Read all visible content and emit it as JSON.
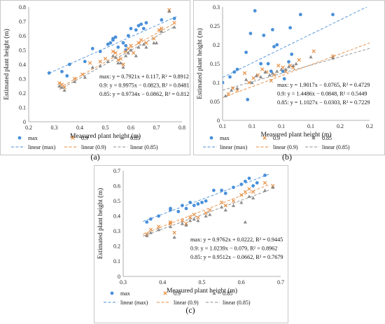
{
  "colors": {
    "max": "#4a90d9",
    "p90": "#e58a3c",
    "p85": "#8c8c8c"
  },
  "legend": {
    "max": "max",
    "p90": "0.9",
    "p85": "0.85",
    "lin_max": "linear (max)",
    "lin_p90": "linear (0.9)",
    "lin_p85": "linear (0.85)"
  },
  "chart_data": [
    {
      "type": "scatter",
      "caption": "(a)",
      "xlabel": "Measured plant height (m)",
      "ylabel": "Estimated plant height (m)",
      "xlim": [
        0.2,
        0.8
      ],
      "ylim": [
        0,
        0.8
      ],
      "xticks": [
        "0.2",
        "0.3",
        "0.4",
        "0.5",
        "0.6",
        "0.7",
        "0.8"
      ],
      "yticks": [
        "0",
        "0.1",
        "0.2",
        "0.3",
        "0.4",
        "0.5",
        "0.6",
        "0.7",
        "0.8"
      ],
      "equations": [
        "max: y = 0.7921x + 0.117, R² = 0.8912",
        "0.9: y = 0.9975x − 0.0823, R² = 0.8481",
        "0.85: y = 0.9734x − 0.0862, R² = 0.812"
      ],
      "fits": [
        {
          "slope": 0.7921,
          "intercept": 0.117,
          "x_range": [
            0.28,
            0.78
          ]
        },
        {
          "slope": 0.9975,
          "intercept": -0.0823,
          "x_range": [
            0.32,
            0.77
          ]
        },
        {
          "slope": 0.9734,
          "intercept": -0.0862,
          "x_range": [
            0.32,
            0.77
          ]
        }
      ],
      "series": [
        {
          "name": "max",
          "points": [
            [
              0.28,
              0.34
            ],
            [
              0.33,
              0.35
            ],
            [
              0.35,
              0.32
            ],
            [
              0.36,
              0.4
            ],
            [
              0.42,
              0.42
            ],
            [
              0.45,
              0.51
            ],
            [
              0.48,
              0.49
            ],
            [
              0.51,
              0.54
            ],
            [
              0.52,
              0.55
            ],
            [
              0.53,
              0.57
            ],
            [
              0.53,
              0.58
            ],
            [
              0.54,
              0.59
            ],
            [
              0.55,
              0.52
            ],
            [
              0.57,
              0.55
            ],
            [
              0.58,
              0.5
            ],
            [
              0.58,
              0.53
            ],
            [
              0.59,
              0.6
            ],
            [
              0.6,
              0.65
            ],
            [
              0.62,
              0.64
            ],
            [
              0.63,
              0.67
            ],
            [
              0.64,
              0.68
            ],
            [
              0.65,
              0.65
            ],
            [
              0.66,
              0.69
            ],
            [
              0.72,
              0.71
            ],
            [
              0.77,
              0.72
            ]
          ]
        },
        {
          "name": "0.9",
          "points": [
            [
              0.32,
              0.27
            ],
            [
              0.33,
              0.26
            ],
            [
              0.34,
              0.24
            ],
            [
              0.38,
              0.3
            ],
            [
              0.41,
              0.33
            ],
            [
              0.44,
              0.41
            ],
            [
              0.48,
              0.42
            ],
            [
              0.5,
              0.44
            ],
            [
              0.53,
              0.49
            ],
            [
              0.54,
              0.48
            ],
            [
              0.55,
              0.43
            ],
            [
              0.56,
              0.44
            ],
            [
              0.57,
              0.4
            ],
            [
              0.58,
              0.49
            ],
            [
              0.59,
              0.51
            ],
            [
              0.6,
              0.53
            ],
            [
              0.61,
              0.48
            ],
            [
              0.63,
              0.55
            ],
            [
              0.64,
              0.57
            ],
            [
              0.66,
              0.55
            ],
            [
              0.69,
              0.58
            ],
            [
              0.71,
              0.64
            ],
            [
              0.72,
              0.65
            ],
            [
              0.75,
              0.78
            ],
            [
              0.77,
              0.69
            ]
          ]
        },
        {
          "name": "0.85",
          "points": [
            [
              0.32,
              0.25
            ],
            [
              0.33,
              0.24
            ],
            [
              0.34,
              0.22
            ],
            [
              0.38,
              0.28
            ],
            [
              0.42,
              0.31
            ],
            [
              0.45,
              0.38
            ],
            [
              0.48,
              0.39
            ],
            [
              0.51,
              0.42
            ],
            [
              0.53,
              0.46
            ],
            [
              0.54,
              0.45
            ],
            [
              0.55,
              0.41
            ],
            [
              0.56,
              0.41
            ],
            [
              0.57,
              0.38
            ],
            [
              0.58,
              0.46
            ],
            [
              0.59,
              0.48
            ],
            [
              0.6,
              0.5
            ],
            [
              0.62,
              0.46
            ],
            [
              0.63,
              0.52
            ],
            [
              0.65,
              0.54
            ],
            [
              0.66,
              0.52
            ],
            [
              0.69,
              0.55
            ],
            [
              0.7,
              0.55
            ],
            [
              0.72,
              0.63
            ],
            [
              0.75,
              0.77
            ],
            [
              0.77,
              0.66
            ]
          ]
        }
      ]
    },
    {
      "type": "scatter",
      "caption": "(b)",
      "xlabel": "Measured plant height (m)",
      "ylabel": "Estimated plant height (m)",
      "xlim": [
        0.1,
        0.2
      ],
      "ylim": [
        0,
        0.3
      ],
      "xticks": [
        "0.1",
        "0.1",
        "0.1",
        "0.1",
        "0.2",
        "0.2"
      ],
      "yticks": [
        "0",
        "0.05",
        "0.1",
        "0.15",
        "0.2",
        "0.25",
        "0.3"
      ],
      "equations": [
        "max: y = 1.9017x − 0.0765, R² = 0.4729",
        "0.9: y = 1.4486x − 0.0848, R² = 0.5449",
        "0.85: y = 1.1027x − 0.0303, R² = 0.7229"
      ],
      "fits": [
        {
          "slope": 1.9017,
          "intercept": -0.0765,
          "x_range": [
            0.1,
            0.2
          ]
        },
        {
          "slope": 1.4486,
          "intercept": -0.0848,
          "x_range": [
            0.1,
            0.2
          ]
        },
        {
          "slope": 1.1027,
          "intercept": -0.0303,
          "x_range": [
            0.1,
            0.2
          ]
        }
      ],
      "series": [
        {
          "name": "max",
          "points": [
            [
              0.1,
              0.1
            ],
            [
              0.105,
              0.115
            ],
            [
              0.108,
              0.128
            ],
            [
              0.11,
              0.135
            ],
            [
              0.116,
              0.18
            ],
            [
              0.117,
              0.055
            ],
            [
              0.119,
              0.23
            ],
            [
              0.122,
              0.29
            ],
            [
              0.126,
              0.15
            ],
            [
              0.128,
              0.225
            ],
            [
              0.131,
              0.15
            ],
            [
              0.133,
              0.13
            ],
            [
              0.134,
              0.24
            ],
            [
              0.135,
              0.195
            ],
            [
              0.137,
              0.2
            ],
            [
              0.141,
              0.13
            ],
            [
              0.142,
              0.11
            ],
            [
              0.145,
              0.155
            ],
            [
              0.146,
              0.245
            ],
            [
              0.147,
              0.175
            ],
            [
              0.153,
              0.28
            ],
            [
              0.175,
              0.28
            ]
          ]
        },
        {
          "name": "0.9",
          "points": [
            [
              0.104,
              0.07
            ],
            [
              0.107,
              0.085
            ],
            [
              0.11,
              0.08
            ],
            [
              0.115,
              0.125
            ],
            [
              0.118,
              0.1
            ],
            [
              0.121,
              0.112
            ],
            [
              0.124,
              0.12
            ],
            [
              0.127,
              0.135
            ],
            [
              0.13,
              0.128
            ],
            [
              0.133,
              0.105
            ],
            [
              0.135,
              0.12
            ],
            [
              0.138,
              0.145
            ],
            [
              0.141,
              0.14
            ],
            [
              0.143,
              0.13
            ],
            [
              0.146,
              0.145
            ],
            [
              0.148,
              0.14
            ],
            [
              0.152,
              0.16
            ],
            [
              0.162,
              0.183
            ],
            [
              0.175,
              0.17
            ]
          ]
        },
        {
          "name": "0.85",
          "points": [
            [
              0.102,
              0.065
            ],
            [
              0.106,
              0.08
            ],
            [
              0.11,
              0.085
            ],
            [
              0.116,
              0.108
            ],
            [
              0.12,
              0.1
            ],
            [
              0.123,
              0.118
            ],
            [
              0.126,
              0.115
            ],
            [
              0.129,
              0.128
            ],
            [
              0.132,
              0.12
            ],
            [
              0.134,
              0.125
            ],
            [
              0.137,
              0.13
            ],
            [
              0.14,
              0.135
            ],
            [
              0.143,
              0.135
            ],
            [
              0.145,
              0.142
            ],
            [
              0.148,
              0.145
            ],
            [
              0.15,
              0.15
            ],
            [
              0.16,
              0.168
            ],
            [
              0.175,
              0.165
            ]
          ]
        }
      ]
    },
    {
      "type": "scatter",
      "caption": "(c)",
      "xlabel": "Measured plant height (m)",
      "ylabel": "Estimated plant height (m)",
      "xlim": [
        0.3,
        0.7
      ],
      "ylim": [
        0,
        0.7
      ],
      "xticks": [
        "0.3",
        "0.4",
        "0.5",
        "0.6",
        "0.7"
      ],
      "yticks": [
        "0",
        "0.1",
        "0.2",
        "0.3",
        "0.4",
        "0.5",
        "0.6",
        "0.7"
      ],
      "equations": [
        "max: y = 0.9762x + 0.0222, R² = 0.9445",
        "0.9: y = 1.0239x − 0.079, R² = 0.8962",
        "0.85: y = 0.9512x − 0.0662, R² = 0.7679"
      ],
      "fits": [
        {
          "slope": 0.9762,
          "intercept": 0.0222,
          "x_range": [
            0.35,
            0.67
          ]
        },
        {
          "slope": 1.0239,
          "intercept": -0.079,
          "x_range": [
            0.35,
            0.67
          ]
        },
        {
          "slope": 0.9512,
          "intercept": -0.0662,
          "x_range": [
            0.35,
            0.67
          ]
        }
      ],
      "series": [
        {
          "name": "max",
          "points": [
            [
              0.36,
              0.36
            ],
            [
              0.37,
              0.38
            ],
            [
              0.39,
              0.4
            ],
            [
              0.42,
              0.44
            ],
            [
              0.42,
              0.45
            ],
            [
              0.44,
              0.43
            ],
            [
              0.45,
              0.47
            ],
            [
              0.46,
              0.45
            ],
            [
              0.47,
              0.49
            ],
            [
              0.48,
              0.47
            ],
            [
              0.49,
              0.48
            ],
            [
              0.5,
              0.49
            ],
            [
              0.51,
              0.5
            ],
            [
              0.53,
              0.57
            ],
            [
              0.55,
              0.57
            ],
            [
              0.56,
              0.55
            ],
            [
              0.58,
              0.59
            ],
            [
              0.6,
              0.61
            ],
            [
              0.61,
              0.63
            ],
            [
              0.62,
              0.65
            ],
            [
              0.63,
              0.6
            ],
            [
              0.64,
              0.62
            ],
            [
              0.66,
              0.67
            ]
          ]
        },
        {
          "name": "0.9",
          "points": [
            [
              0.36,
              0.28
            ],
            [
              0.37,
              0.31
            ],
            [
              0.39,
              0.33
            ],
            [
              0.42,
              0.35
            ],
            [
              0.42,
              0.36
            ],
            [
              0.43,
              0.29
            ],
            [
              0.45,
              0.37
            ],
            [
              0.46,
              0.35
            ],
            [
              0.47,
              0.39
            ],
            [
              0.48,
              0.41
            ],
            [
              0.49,
              0.39
            ],
            [
              0.51,
              0.42
            ],
            [
              0.52,
              0.44
            ],
            [
              0.55,
              0.49
            ],
            [
              0.56,
              0.47
            ],
            [
              0.58,
              0.5
            ],
            [
              0.6,
              0.54
            ],
            [
              0.61,
              0.56
            ],
            [
              0.62,
              0.58
            ],
            [
              0.63,
              0.56
            ],
            [
              0.66,
              0.62
            ],
            [
              0.68,
              0.6
            ]
          ]
        },
        {
          "name": "0.85",
          "points": [
            [
              0.36,
              0.27
            ],
            [
              0.37,
              0.29
            ],
            [
              0.39,
              0.31
            ],
            [
              0.42,
              0.33
            ],
            [
              0.43,
              0.26
            ],
            [
              0.45,
              0.35
            ],
            [
              0.46,
              0.34
            ],
            [
              0.47,
              0.37
            ],
            [
              0.48,
              0.38
            ],
            [
              0.49,
              0.37
            ],
            [
              0.51,
              0.4
            ],
            [
              0.52,
              0.41
            ],
            [
              0.55,
              0.46
            ],
            [
              0.56,
              0.44
            ],
            [
              0.58,
              0.47
            ],
            [
              0.6,
              0.49
            ],
            [
              0.61,
              0.36
            ],
            [
              0.62,
              0.53
            ],
            [
              0.63,
              0.52
            ],
            [
              0.66,
              0.57
            ],
            [
              0.68,
              0.59
            ]
          ]
        }
      ]
    }
  ]
}
